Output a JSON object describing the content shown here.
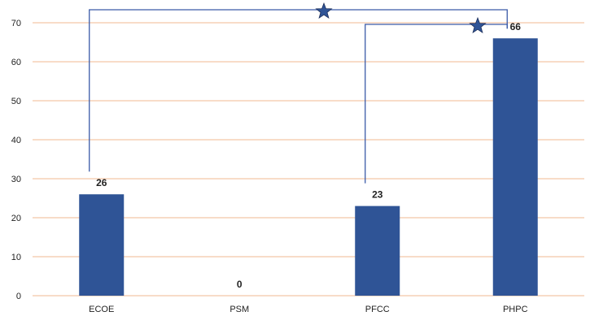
{
  "chart_data": {
    "type": "bar",
    "categories": [
      "ECOE",
      "PSM",
      "PFCC",
      "PHPC"
    ],
    "values": [
      26,
      0,
      23,
      66
    ],
    "data_labels": [
      "26",
      "0",
      "23",
      "66"
    ],
    "title": "",
    "xlabel": "",
    "ylabel": "",
    "ylim": [
      0,
      70
    ],
    "yticks": [
      "0",
      "10",
      "20",
      "30",
      "40",
      "50",
      "60",
      "70"
    ],
    "grid": "horizontal",
    "bar_color": "#2f5496",
    "gridline_color": "#f4c7a8",
    "bracket_color": "#3a5aa8",
    "significance": [
      {
        "from": "ECOE",
        "to": "PHPC",
        "marker": "★"
      },
      {
        "from": "PFCC",
        "to": "PHPC",
        "marker": "★"
      }
    ]
  }
}
